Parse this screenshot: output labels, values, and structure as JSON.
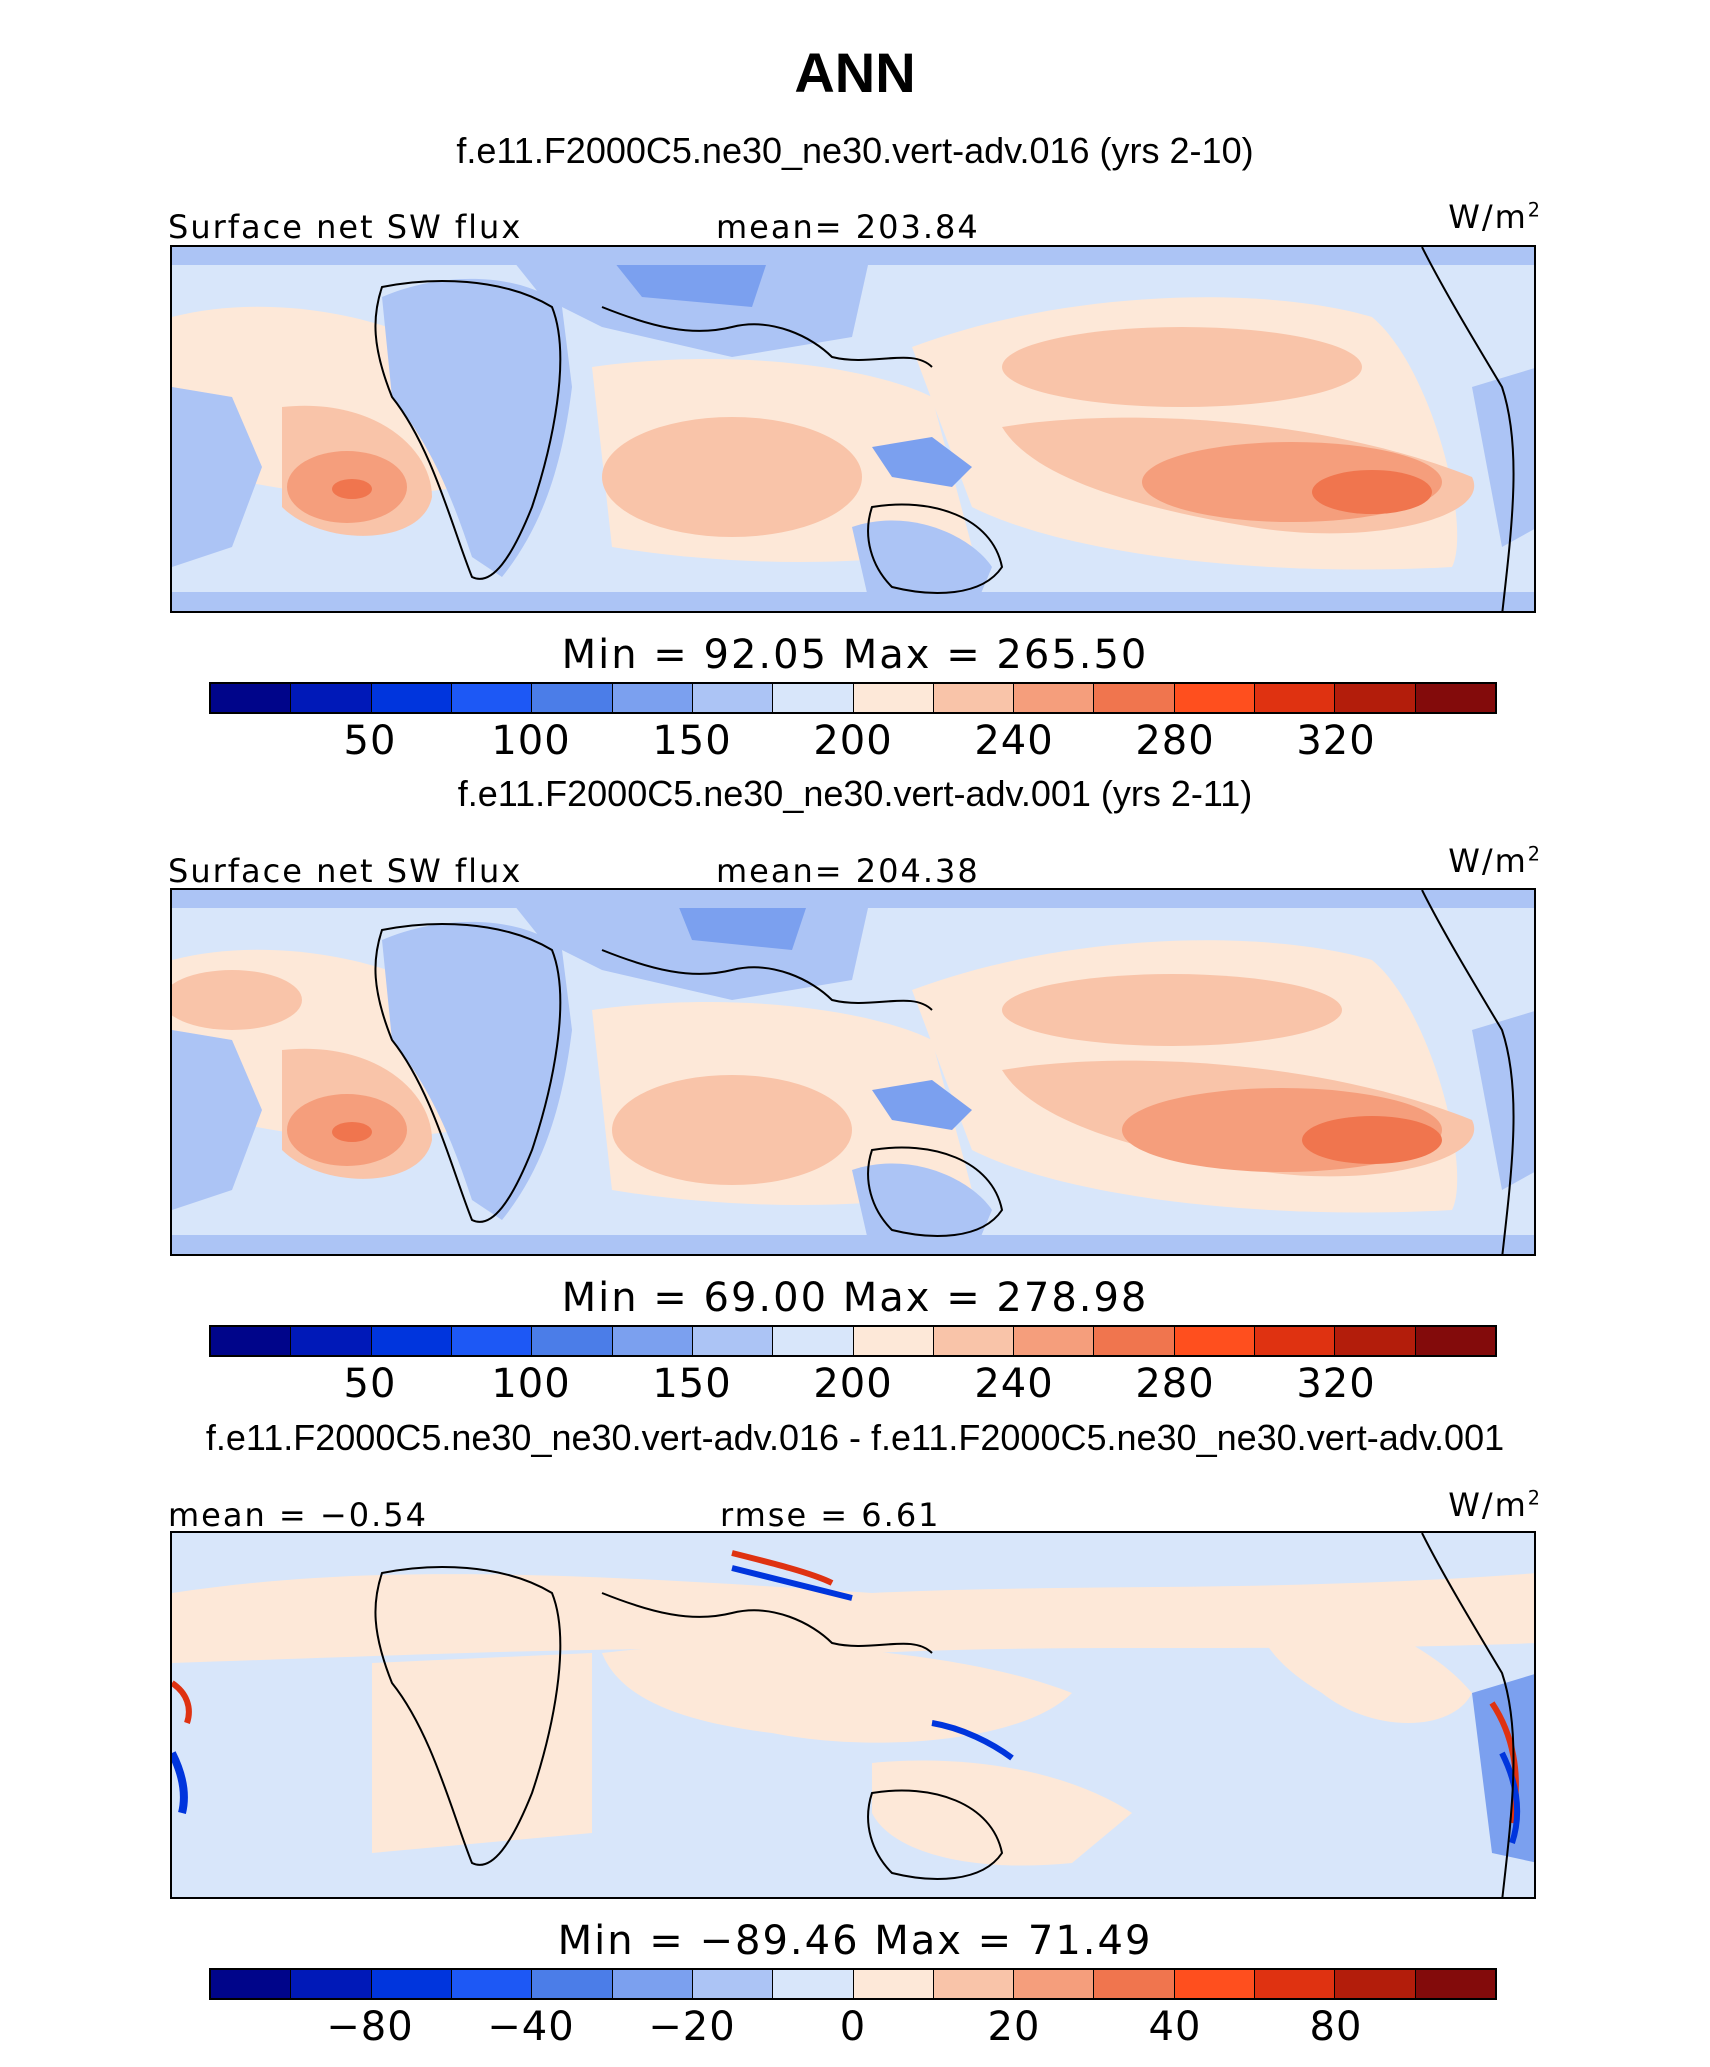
{
  "figure": {
    "title": "ANN",
    "panel_top_title": "f.e11.F2000C5.ne30_ne30.vert-adv.016 (yrs 2-10)",
    "panel_mid_title": "f.e11.F2000C5.ne30_ne30.vert-adv.001 (yrs 2-11)",
    "panel_diff_title": "f.e11.F2000C5.ne30_ne30.vert-adv.016 - f.e11.F2000C5.ne30_ne30.vert-adv.001"
  },
  "colors": {
    "palette": [
      "#00058a",
      "#0019b8",
      "#0035dd",
      "#1d58f5",
      "#4b7de8",
      "#7ba0ef",
      "#acc4f5",
      "#d8e6fa",
      "#fde8d8",
      "#f9c4a9",
      "#f59e7c",
      "#f0754e",
      "#ff4f1e",
      "#df3211",
      "#b31d0b",
      "#830b0b"
    ]
  },
  "panels": [
    {
      "variable": "Surface net SW flux",
      "mean_label": "mean=",
      "mean_value": "203.84",
      "units": "W/m",
      "units_exp": "2",
      "min_label": "Min",
      "min_value": "92.05",
      "max_label": "Max",
      "max_value": "265.50",
      "equals": "=",
      "ticks": [
        "50",
        "100",
        "150",
        "200",
        "240",
        "280",
        "320"
      ]
    },
    {
      "variable": "Surface net SW flux",
      "mean_label": "mean=",
      "mean_value": "204.38",
      "units": "W/m",
      "units_exp": "2",
      "min_label": "Min",
      "min_value": "69.00",
      "max_label": "Max",
      "max_value": "278.98",
      "equals": "=",
      "ticks": [
        "50",
        "100",
        "150",
        "200",
        "240",
        "280",
        "320"
      ]
    },
    {
      "mean_label": "mean =",
      "mean_value": "−0.54",
      "rmse_label": "rmse =",
      "rmse_value": "6.61",
      "units": "W/m",
      "units_exp": "2",
      "min_label": "Min",
      "min_value": "−89.46",
      "max_label": "Max",
      "max_value": "71.49",
      "equals": "=",
      "ticks": [
        "−80",
        "−40",
        "−20",
        "0",
        "20",
        "40",
        "80"
      ]
    }
  ]
}
